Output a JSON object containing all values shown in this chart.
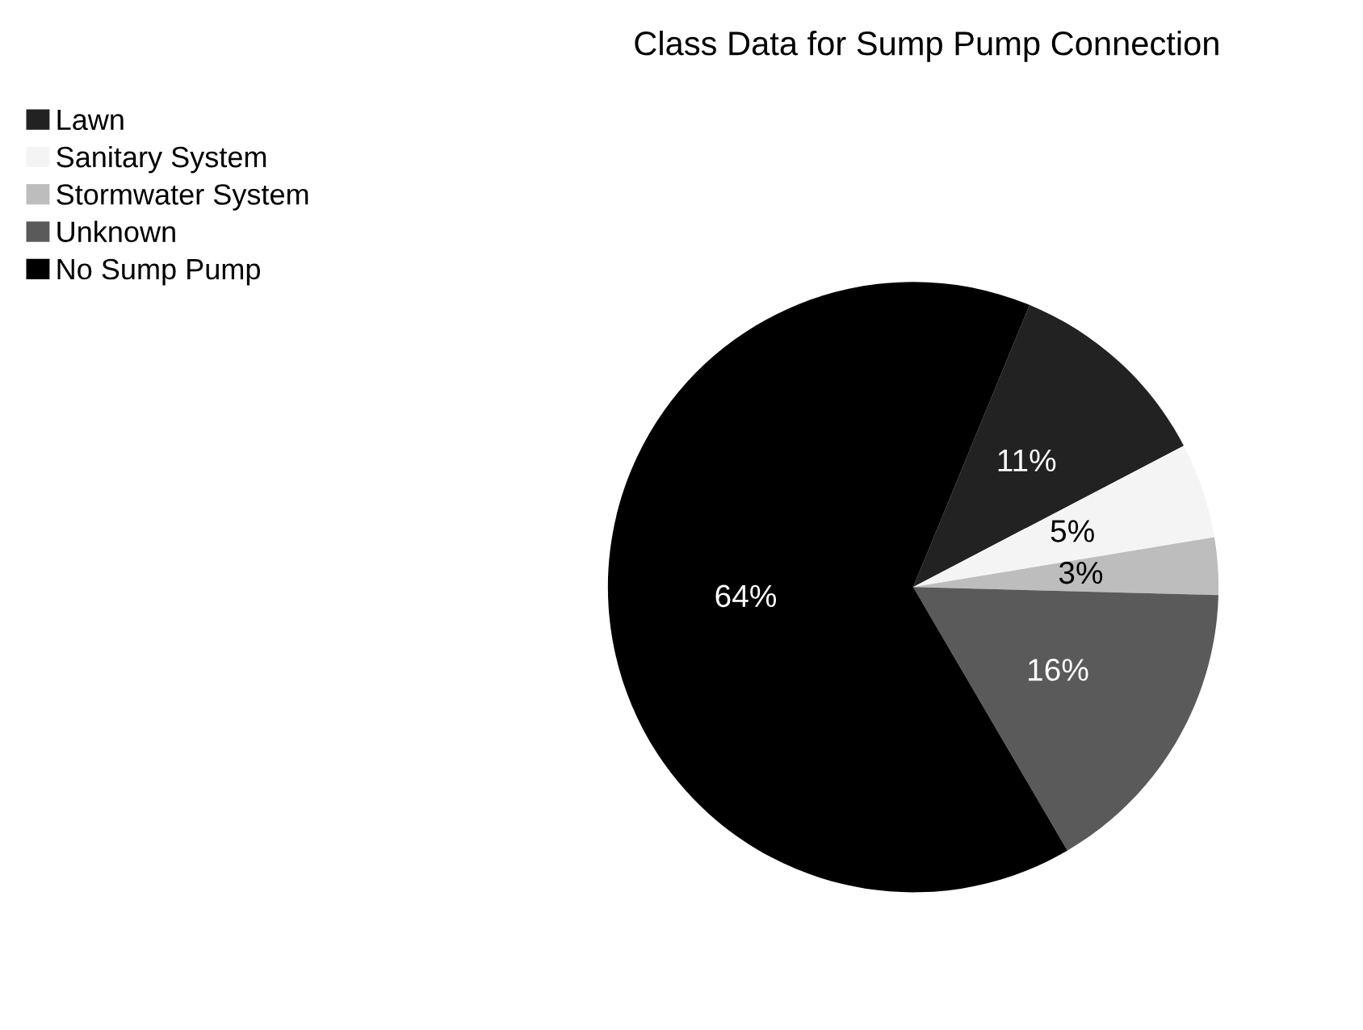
{
  "chart_data": {
    "type": "pie",
    "title": "Class Data for Sump Pump Connection",
    "categories": [
      "Lawn",
      "Sanitary System",
      "Stormwater System",
      "Unknown",
      "No Sump Pump"
    ],
    "values": [
      11,
      5,
      3,
      16,
      64
    ],
    "colors": [
      "#222222",
      "#f4f4f4",
      "#bdbdbd",
      "#5a5a5a",
      "#000000"
    ],
    "value_labels": [
      "11%",
      "5%",
      "3%",
      "16%",
      "64%"
    ],
    "legend": "left"
  }
}
